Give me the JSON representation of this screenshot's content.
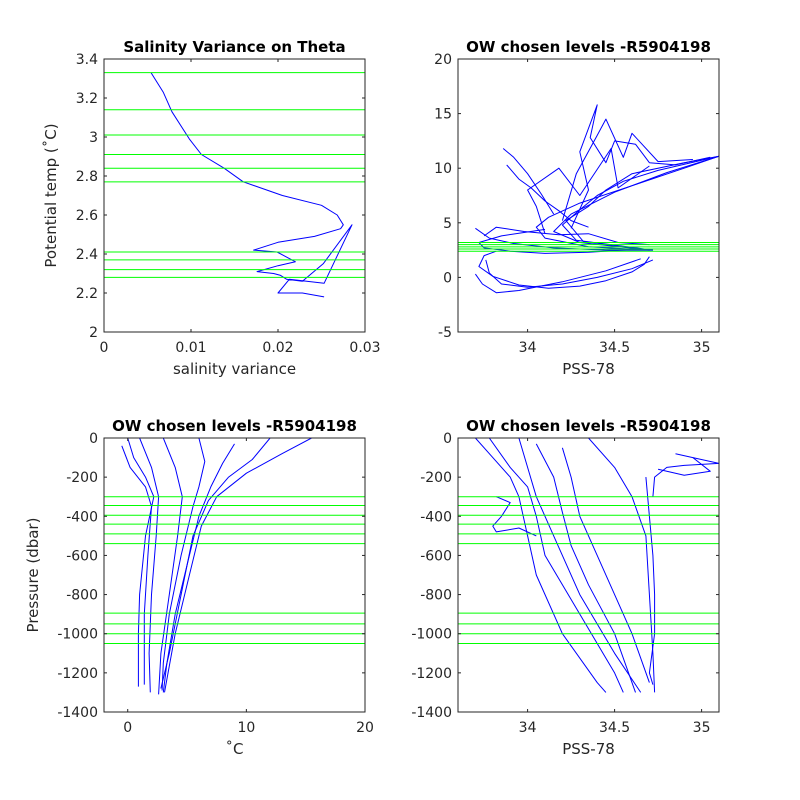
{
  "colors": {
    "profile": "#0000ff",
    "level": "#00ff00",
    "axis": "#262626"
  },
  "chart_data": [
    {
      "type": "line",
      "title": "Salinity Variance on Theta",
      "xlabel": "salinity variance",
      "ylabel": "Potential temp (˚C)",
      "xlim": [
        0,
        0.03
      ],
      "ylim": [
        2,
        3.4
      ],
      "xticks": [
        "0",
        "0.01",
        "0.02",
        "0.03"
      ],
      "yticks": [
        "2",
        "2.2",
        "2.4",
        "2.6",
        "2.8",
        "3",
        "3.2",
        "3.4"
      ],
      "grid": false,
      "series": [
        {
          "x": [
            0.0054,
            0.0068,
            0.0078,
            0.0098,
            0.0112,
            0.0138,
            0.016,
            0.0205,
            0.025,
            0.0268,
            0.0275,
            0.0272,
            0.0242,
            0.02,
            0.0172,
            0.0199,
            0.022,
            0.02,
            0.0176,
            0.0195,
            0.0203,
            0.021,
            0.0228,
            0.0252,
            0.0285,
            0.0253,
            0.0213,
            0.02,
            0.0228,
            0.0253
          ],
          "y": [
            3.33,
            3.23,
            3.13,
            2.99,
            2.91,
            2.84,
            2.77,
            2.7,
            2.65,
            2.6,
            2.55,
            2.53,
            2.49,
            2.46,
            2.42,
            2.41,
            2.36,
            2.34,
            2.31,
            2.3,
            2.29,
            2.27,
            2.26,
            2.35,
            2.55,
            2.25,
            2.27,
            2.2,
            2.2,
            2.18
          ]
        }
      ],
      "levels_y": [
        3.33,
        3.14,
        3.01,
        2.91,
        2.84,
        2.77,
        2.41,
        2.37,
        2.32,
        2.28
      ]
    },
    {
      "type": "line",
      "title": "OW chosen levels -R5904198",
      "xlabel": "PSS-78",
      "ylabel": "",
      "xlim": [
        33.6,
        35.1
      ],
      "ylim": [
        -5,
        20
      ],
      "xticks": [
        "34",
        "34.5",
        "35"
      ],
      "xtick_values": [
        34,
        34.5,
        35
      ],
      "yticks": [
        "-5",
        "0",
        "5",
        "10",
        "15",
        "20"
      ],
      "grid": false,
      "levels_y": [
        2.4,
        2.6,
        2.8,
        3.0,
        3.2
      ],
      "series": [
        {
          "name": "",
          "x": [
            34.7,
            34.67,
            34.6,
            34.45,
            34.3,
            34.12,
            33.95,
            33.8,
            33.72,
            33.75,
            33.82
          ],
          "y": [
            1.9,
            1.2,
            0.5,
            -0.3,
            -0.8,
            -1.0,
            -0.7,
            0.1,
            1.0,
            2.0,
            2.4
          ]
        },
        {
          "name": "",
          "x": [
            34.72,
            34.6,
            34.4,
            34.2,
            34.0,
            33.85,
            33.78,
            33.76
          ],
          "y": [
            1.6,
            0.8,
            0.0,
            -0.6,
            -0.9,
            -0.6,
            0.4,
            1.6
          ]
        },
        {
          "name": "",
          "x": [
            34.65,
            34.45,
            34.2,
            33.95,
            33.82,
            33.74,
            33.7
          ],
          "y": [
            1.7,
            0.6,
            -0.4,
            -1.2,
            -1.4,
            -0.6,
            0.3
          ]
        },
        {
          "name": "",
          "x": [
            34.72,
            34.55,
            34.35,
            34.1,
            33.9,
            33.75,
            33.72,
            33.85,
            34.1
          ],
          "y": [
            2.6,
            2.5,
            2.3,
            2.2,
            2.4,
            2.7,
            3.2,
            3.8,
            4.4
          ]
        },
        {
          "name": "",
          "x": [
            34.72,
            34.45,
            34.15,
            33.92,
            33.78,
            33.7
          ],
          "y": [
            2.5,
            2.5,
            2.7,
            3.1,
            3.6,
            4.5
          ]
        },
        {
          "name": "",
          "x": [
            34.7,
            34.35,
            34.1,
            34.05,
            34.12,
            34.3,
            34.6,
            34.9,
            35.1
          ],
          "y": [
            2.5,
            2.8,
            3.6,
            4.6,
            5.5,
            6.8,
            8.4,
            10.0,
            11.1
          ]
        },
        {
          "name": "",
          "x": [
            34.7,
            34.3,
            34.15,
            34.25,
            34.5,
            34.8,
            35.1
          ],
          "y": [
            2.5,
            3.2,
            4.2,
            5.8,
            7.8,
            9.6,
            11.1
          ]
        },
        {
          "name": "",
          "x": [
            34.72,
            34.28,
            34.2,
            34.3,
            34.4,
            34.55,
            34.75,
            35.1
          ],
          "y": [
            2.5,
            3.4,
            4.8,
            6.2,
            7.5,
            8.8,
            9.8,
            11.1
          ]
        },
        {
          "name": "",
          "x": [
            34.7,
            34.32,
            34.22,
            34.35,
            34.45,
            34.6,
            34.9,
            35.1
          ],
          "y": [
            2.5,
            3.3,
            5.2,
            6.5,
            8.0,
            9.5,
            10.5,
            11.1
          ]
        },
        {
          "name": "",
          "x": [
            34.25,
            34.35,
            34.3,
            34.4,
            34.36,
            34.45,
            34.5,
            34.62,
            34.7,
            34.85,
            35.05
          ],
          "y": [
            4.5,
            8.0,
            11.5,
            15.8,
            12.8,
            10.5,
            12.5,
            12.2,
            10.5,
            10.3,
            11.0
          ]
        },
        {
          "name": "",
          "x": [
            34.2,
            34.28,
            34.4,
            34.45,
            34.55,
            34.6,
            34.75,
            34.95
          ],
          "y": [
            5.2,
            9.5,
            13.0,
            14.5,
            11.0,
            13.2,
            10.6,
            10.8
          ]
        },
        {
          "name": "",
          "x": [
            34.1,
            34.05,
            34.0,
            34.18,
            34.3,
            34.48,
            34.52,
            34.7
          ],
          "y": [
            4.0,
            6.5,
            8.0,
            10.0,
            7.5,
            11.8,
            8.2,
            10.2
          ]
        },
        {
          "name": "",
          "x": [
            33.88,
            33.95,
            34.02,
            34.1,
            34.18,
            34.25,
            34.35
          ],
          "y": [
            10.3,
            9.0,
            8.2,
            7.0,
            6.1,
            5.2,
            4.6
          ]
        },
        {
          "name": "",
          "x": [
            33.86,
            33.92,
            34.0,
            34.08,
            34.15
          ],
          "y": [
            11.8,
            11.0,
            9.5,
            7.6,
            5.8
          ]
        },
        {
          "name": "",
          "x": [
            33.75,
            33.82,
            33.98,
            34.18,
            34.35,
            34.52,
            34.7
          ],
          "y": [
            3.8,
            4.6,
            4.2,
            3.9,
            4.0,
            3.2,
            3.0
          ]
        }
      ]
    },
    {
      "type": "line",
      "title": "OW chosen levels -R5904198",
      "xlabel": "˚C",
      "ylabel": "Pressure (dbar)",
      "xlim": [
        -2,
        20
      ],
      "ylim": [
        -1400,
        0
      ],
      "xticks": [
        "0",
        "10",
        "20"
      ],
      "xtick_values": [
        0,
        10,
        20
      ],
      "yticks": [
        "-1400",
        "-1200",
        "-1000",
        "-800",
        "-600",
        "-400",
        "-200",
        "0"
      ],
      "grid": false,
      "levels_y": [
        -300,
        -345,
        -395,
        -440,
        -490,
        -540,
        -895,
        -950,
        -1000,
        -1050
      ],
      "series": [
        {
          "name": "",
          "x": [
            0.0,
            0.5,
            1.5,
            2.2,
            1.5,
            1.0,
            0.9,
            0.9,
            0.9
          ],
          "y": [
            0,
            -100,
            -200,
            -300,
            -500,
            -800,
            -1000,
            -1200,
            -1270
          ]
        },
        {
          "name": "",
          "x": [
            1.0,
            2.0,
            2.6,
            2.4,
            2.0,
            1.8,
            1.9
          ],
          "y": [
            0,
            -150,
            -300,
            -500,
            -800,
            -1100,
            -1300
          ]
        },
        {
          "name": "",
          "x": [
            3.0,
            4.0,
            4.6,
            4.2,
            3.5,
            2.8,
            2.6
          ],
          "y": [
            0,
            -150,
            -300,
            -500,
            -800,
            -1100,
            -1310
          ]
        },
        {
          "name": "",
          "x": [
            6.0,
            6.5,
            6.0,
            5.5,
            4.5,
            3.5,
            3.0,
            2.9
          ],
          "y": [
            0,
            -120,
            -250,
            -350,
            -600,
            -900,
            -1150,
            -1290
          ]
        },
        {
          "name": "",
          "x": [
            9.0,
            8.0,
            7.0,
            6.0,
            5.0,
            4.0,
            3.3,
            3.0
          ],
          "y": [
            -30,
            -130,
            -250,
            -400,
            -650,
            -900,
            -1150,
            -1300
          ]
        },
        {
          "name": "",
          "x": [
            15.5,
            13.0,
            10.0,
            7.5,
            6.2,
            5.2,
            4.0,
            3.1
          ],
          "y": [
            0,
            -80,
            -180,
            -300,
            -450,
            -700,
            -1000,
            -1300
          ]
        },
        {
          "name": "",
          "x": [
            12.0,
            10.5,
            8.5,
            6.8,
            5.5,
            4.5,
            3.5,
            2.8
          ],
          "y": [
            0,
            -110,
            -200,
            -320,
            -500,
            -800,
            -1100,
            -1280
          ]
        },
        {
          "name": "",
          "x": [
            -0.5,
            0.2,
            1.5,
            2.0,
            1.7,
            1.4,
            1.4
          ],
          "y": [
            -40,
            -150,
            -250,
            -350,
            -600,
            -900,
            -1260
          ]
        }
      ]
    },
    {
      "type": "line",
      "title": "OW chosen levels -R5904198",
      "xlabel": "PSS-78",
      "ylabel": "",
      "xlim": [
        33.6,
        35.1
      ],
      "ylim": [
        -1400,
        0
      ],
      "xticks": [
        "34",
        "34.5",
        "35"
      ],
      "xtick_values": [
        34,
        34.5,
        35
      ],
      "yticks": [
        "-1400",
        "-1200",
        "-1000",
        "-800",
        "-600",
        "-400",
        "-200",
        "0"
      ],
      "grid": false,
      "levels_y": [
        -300,
        -345,
        -395,
        -440,
        -490,
        -540,
        -895,
        -950,
        -1000,
        -1050
      ],
      "series": [
        {
          "name": "",
          "x": [
            33.7,
            33.8,
            33.9,
            33.95,
            34.0,
            34.05,
            34.2,
            34.4,
            34.45,
            34.45
          ],
          "y": [
            0,
            -100,
            -200,
            -300,
            -500,
            -700,
            -1000,
            -1250,
            -1300,
            -1300
          ]
        },
        {
          "name": "",
          "x": [
            33.78,
            33.9,
            34.0,
            34.05,
            34.1,
            34.3,
            34.5,
            34.55
          ],
          "y": [
            0,
            -150,
            -250,
            -400,
            -600,
            -900,
            -1200,
            -1300
          ]
        },
        {
          "name": "",
          "x": [
            33.95,
            34.0,
            34.05,
            34.15,
            34.3,
            34.5,
            34.65
          ],
          "y": [
            0,
            -150,
            -300,
            -500,
            -800,
            -1100,
            -1300
          ]
        },
        {
          "name": "",
          "x": [
            34.35,
            34.5,
            34.6,
            34.68,
            34.7,
            34.72,
            34.73
          ],
          "y": [
            0,
            -150,
            -300,
            -500,
            -800,
            -1100,
            -1300
          ]
        },
        {
          "name": "",
          "x": [
            34.68,
            34.7,
            34.72,
            34.73,
            34.73,
            34.7,
            34.72
          ],
          "y": [
            -200,
            -400,
            -600,
            -800,
            -1000,
            -1200,
            -1260
          ]
        },
        {
          "name": "",
          "x": [
            34.95,
            35.1,
            34.9,
            34.8,
            34.73,
            34.72
          ],
          "y": [
            -100,
            -130,
            -140,
            -150,
            -200,
            -300
          ]
        },
        {
          "name": "",
          "x": [
            34.85,
            34.95,
            35.05,
            34.9,
            34.75
          ],
          "y": [
            -80,
            -100,
            -170,
            -190,
            -160
          ]
        },
        {
          "name": "",
          "x": [
            33.82,
            33.9,
            33.85,
            33.8,
            33.82,
            33.95,
            34.05
          ],
          "y": [
            -300,
            -330,
            -400,
            -450,
            -480,
            -460,
            -500
          ]
        },
        {
          "name": "",
          "x": [
            34.2,
            34.25,
            34.3,
            34.4,
            34.5,
            34.6,
            34.7
          ],
          "y": [
            -50,
            -200,
            -400,
            -600,
            -800,
            -1000,
            -1250
          ]
        },
        {
          "name": "",
          "x": [
            34.05,
            34.15,
            34.2,
            34.25,
            34.35,
            34.5,
            34.62
          ],
          "y": [
            -30,
            -200,
            -380,
            -550,
            -750,
            -1000,
            -1300
          ]
        }
      ]
    }
  ]
}
